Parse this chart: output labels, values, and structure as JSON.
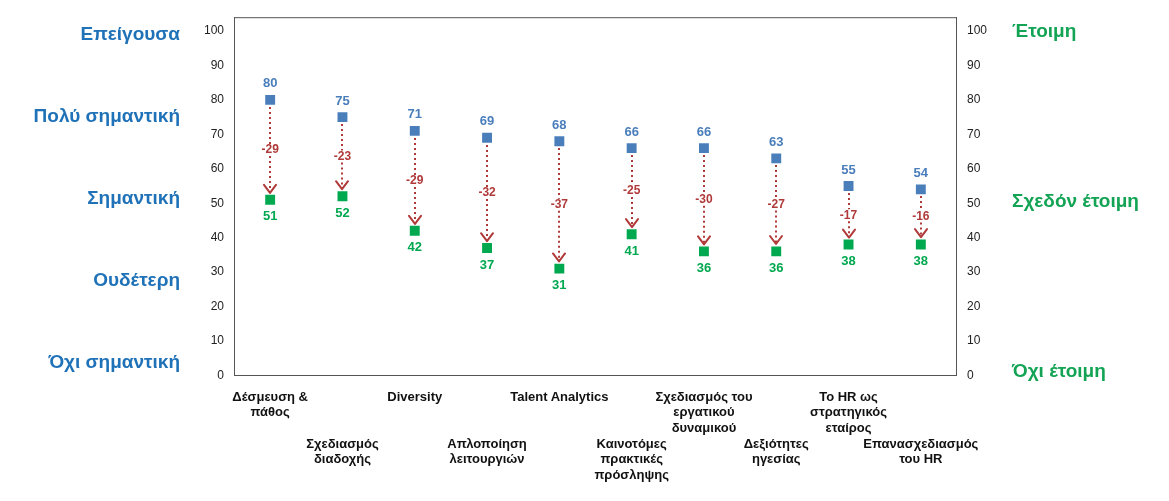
{
  "chart_data": {
    "type": "scatter",
    "categories": [
      "Δέσμευση & πάθος",
      "Σχεδιασμός διαδοχής",
      "Diversity",
      "Απλοποίηση λειτουργιών",
      "Talent Analytics",
      "Καινοτόμες πρακτικές πρόσληψης",
      "Σχεδιασμός του εργατικού δυναμικού",
      "Δεξιότητες ηγεσίας",
      "Το HR ως στρατηγικός εταίρος",
      "Επανασχεδιασμός του HR"
    ],
    "series": [
      {
        "color": "#4a7ebb",
        "values": [
          80,
          75,
          71,
          69,
          68,
          66,
          66,
          63,
          55,
          54
        ]
      },
      {
        "color": "#00a84f",
        "values": [
          51,
          52,
          42,
          37,
          31,
          41,
          36,
          36,
          38,
          38
        ]
      }
    ],
    "ylim": [
      0,
      104
    ],
    "yticks": [
      0,
      10,
      20,
      30,
      40,
      50,
      60,
      70,
      80,
      90,
      100
    ],
    "y2lim": [
      0,
      104
    ],
    "y2ticks": [
      0,
      10,
      20,
      30,
      40,
      50,
      60,
      70,
      80,
      90,
      100
    ],
    "annotations": [
      "Επείγουσα",
      "Πολύ σημαντική",
      "Σημαντική",
      "Ουδέτερη",
      "Όχι σημαντική",
      "Έτοιμη",
      "Σχεδόν έτοιμη",
      "Όχι έτοιμη",
      {
        "text": "-29",
        "x": "Δέσμευση & πάθος",
        "y": 51
      },
      {
        "text": "-23",
        "x": "Σχεδιασμός διαδοχής",
        "y": 52
      },
      {
        "text": "-29",
        "x": "Diversity",
        "y": 42
      },
      {
        "text": "-32",
        "x": "Απλοποίηση λειτουργιών",
        "y": 37
      },
      {
        "text": "-37",
        "x": "Talent Analytics",
        "y": 31
      },
      {
        "text": "-25",
        "x": "Καινοτόμες πρακτικές πρόσληψης",
        "y": 41
      },
      {
        "text": "-30",
        "x": "Σχεδιασμός του εργατικού δυναμικού",
        "y": 36
      },
      {
        "text": "-27",
        "x": "Δεξιότητες ηγεσίας",
        "y": 36
      },
      {
        "text": "-17",
        "x": "Το HR ως στρατηγικός εταίρος",
        "y": 38
      },
      {
        "text": "-16",
        "x": "Επανασχεδιασμός του HR",
        "y": 38
      }
    ],
    "data_labels": true,
    "grid": false,
    "legend": false,
    "marker": "square"
  }
}
